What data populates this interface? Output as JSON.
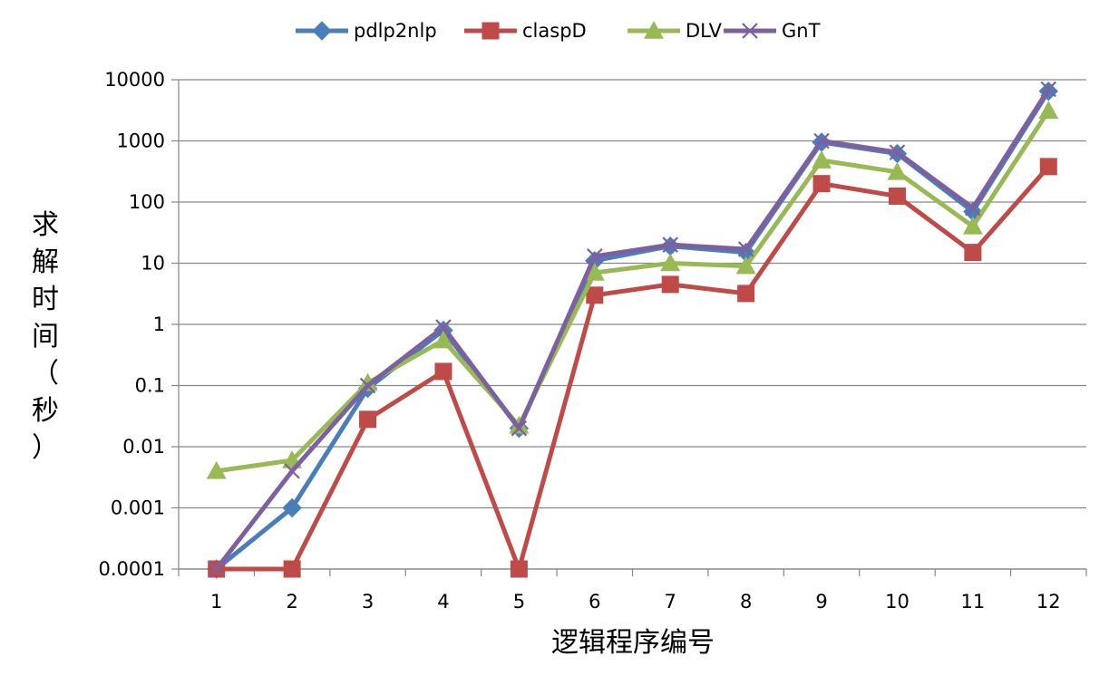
{
  "chart_data": {
    "type": "line",
    "title": "",
    "xlabel": "逻辑程序编号",
    "ylabel": "求解时间（秒）",
    "ylabel_chars": [
      "求",
      "解",
      "时",
      "间",
      "（",
      "秒",
      "）"
    ],
    "y_scale": "log",
    "ylim": [
      0.0001,
      10000
    ],
    "y_ticks": [
      0.0001,
      0.001,
      0.01,
      0.1,
      1,
      10,
      100,
      1000,
      10000
    ],
    "y_tick_labels": [
      "0.0001",
      "0.001",
      "0.01",
      "0.1",
      "1",
      "10",
      "100",
      "1000",
      "10000"
    ],
    "categories": [
      "1",
      "2",
      "3",
      "4",
      "5",
      "6",
      "7",
      "8",
      "9",
      "10",
      "11",
      "12"
    ],
    "grid": true,
    "legend_position": "top",
    "series": [
      {
        "name": "pdlp2nlp",
        "color": "#4A7EBB",
        "marker": "diamond",
        "values": [
          0.0001,
          0.001,
          0.09,
          0.8,
          0.02,
          11,
          19,
          15,
          950,
          620,
          70,
          6500
        ]
      },
      {
        "name": "claspD",
        "color": "#BE4B48",
        "marker": "square",
        "values": [
          0.0001,
          0.0001,
          0.028,
          0.17,
          0.0001,
          3,
          4.5,
          3.2,
          200,
          125,
          15,
          380
        ]
      },
      {
        "name": "DLV",
        "color": "#98B954",
        "marker": "triangle",
        "values": [
          0.004,
          0.006,
          0.11,
          0.55,
          0.022,
          7,
          10,
          9,
          480,
          310,
          40,
          3100
        ]
      },
      {
        "name": "GnT",
        "color": "#7D60A0",
        "marker": "x",
        "values": [
          0.0001,
          0.004,
          0.1,
          0.9,
          0.02,
          13,
          20,
          17,
          1000,
          650,
          80,
          7000
        ]
      }
    ]
  }
}
